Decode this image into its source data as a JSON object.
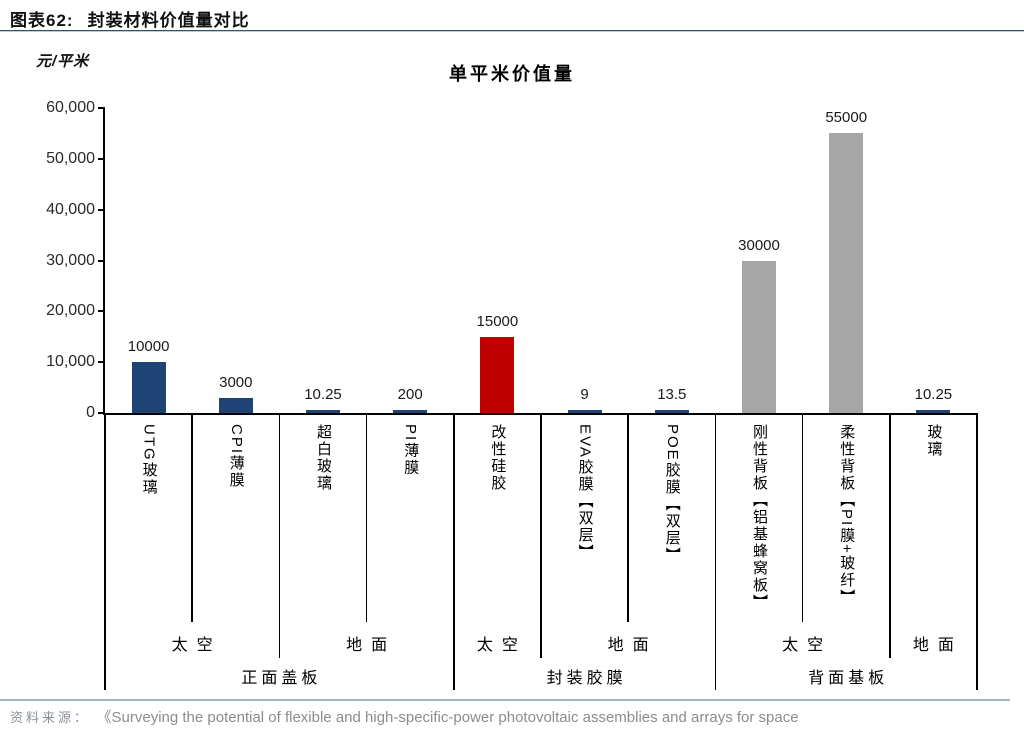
{
  "header": {
    "figure_label": "图表62:",
    "figure_title": "封装材料价值量对比"
  },
  "chart": {
    "title": "单平米价值量",
    "unit_label": "元/平米"
  },
  "chart_data": {
    "type": "bar",
    "title": "单平米价值量",
    "ylabel": "元/平米",
    "xlabel": "",
    "ylim": [
      0,
      60000
    ],
    "ytick_interval": 10000,
    "yticks": [
      "0",
      "10,000",
      "20,000",
      "30,000",
      "40,000",
      "50,000",
      "60,000"
    ],
    "grid": "off",
    "legend": "none",
    "categories": [
      "UTG玻璃",
      "CPI薄膜",
      "超白玻璃",
      "PI薄膜",
      "改性硅胶",
      "EVA胶膜【双层】",
      "POE胶膜【双层】",
      "刚性背板【铝基蜂窝板】",
      "柔性背板【PI膜+玻纤】",
      "玻璃"
    ],
    "values": [
      10000,
      3000,
      10.25,
      200,
      15000,
      9,
      13.5,
      30000,
      55000,
      10.25
    ],
    "value_labels": [
      "10000",
      "3000",
      "10.25",
      "200",
      "15000",
      "9",
      "13.5",
      "30000",
      "55000",
      "10.25"
    ],
    "bar_colors": [
      "#1F4374",
      "#1F4374",
      "#1F4374",
      "#1F4374",
      "#C00000",
      "#1F4374",
      "#1F4374",
      "#A6A6A6",
      "#A6A6A6",
      "#1F4374"
    ],
    "colors": {
      "navy": "#1F4374",
      "red": "#C00000",
      "gray": "#A6A6A6"
    },
    "groups": [
      {
        "label": "正面盖板",
        "span": [
          0,
          3
        ],
        "subgroups": [
          {
            "label": "太空",
            "span": [
              0,
              1
            ]
          },
          {
            "label": "地面",
            "span": [
              2,
              3
            ]
          }
        ]
      },
      {
        "label": "封装胶膜",
        "span": [
          4,
          6
        ],
        "subgroups": [
          {
            "label": "太空",
            "span": [
              4,
              4
            ]
          },
          {
            "label": "地面",
            "span": [
              5,
              6
            ]
          }
        ]
      },
      {
        "label": "背面基板",
        "span": [
          7,
          9
        ],
        "subgroups": [
          {
            "label": "太空",
            "span": [
              7,
              8
            ]
          },
          {
            "label": "地面",
            "span": [
              9,
              9
            ]
          }
        ]
      }
    ]
  },
  "footer": {
    "source_label": "资料来源：",
    "source_text": "《Surveying the potential of flexible and high-specific-power photovoltaic assemblies and arrays for space"
  }
}
